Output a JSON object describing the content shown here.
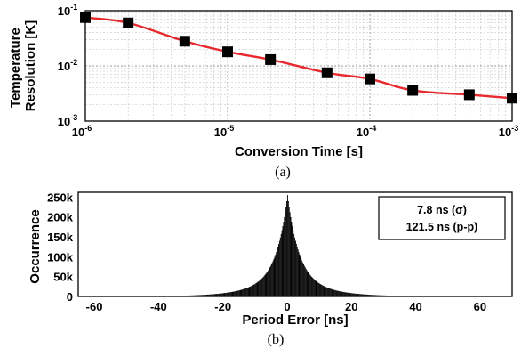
{
  "chart_data": [
    {
      "type": "line",
      "caption": "(a)",
      "xlabel": "Conversion Time [s]",
      "ylabel": "Temperature Resolution [K]",
      "xscale": "log",
      "yscale": "log",
      "xlim": [
        1e-06,
        0.001
      ],
      "ylim": [
        0.001,
        0.1
      ],
      "grid": true,
      "x_ticks": [
        {
          "base": "10",
          "exp": "-6"
        },
        {
          "base": "10",
          "exp": "-5"
        },
        {
          "base": "10",
          "exp": "-4"
        },
        {
          "base": "10",
          "exp": "-3"
        }
      ],
      "y_ticks": [
        {
          "base": "10",
          "exp": "-1"
        },
        {
          "base": "10",
          "exp": "-2"
        },
        {
          "base": "10",
          "exp": "-3"
        }
      ],
      "series": [
        {
          "color": "#e8282c",
          "marker": "square",
          "marker_color": "#000000",
          "x": [
            1e-06,
            2e-06,
            5e-06,
            1e-05,
            2e-05,
            5e-05,
            0.0001,
            0.0002,
            0.0005,
            0.001
          ],
          "y": [
            0.075,
            0.06,
            0.028,
            0.018,
            0.013,
            0.0075,
            0.0058,
            0.0036,
            0.003,
            0.0026
          ]
        }
      ]
    },
    {
      "type": "histogram",
      "caption": "(b)",
      "xlabel": "Period Error [ns]",
      "ylabel": "Occurrence",
      "xlim": [
        -65,
        70
      ],
      "ylim": [
        0,
        262000
      ],
      "x_ticks": [
        "-60",
        "-40",
        "-20",
        "0",
        "20",
        "40",
        "60"
      ],
      "y_ticks": [
        "0",
        "50k",
        "100k",
        "150k",
        "200k",
        "250k"
      ],
      "stats": {
        "sigma": "7.8 ns (σ)",
        "pp": "121.5 ns (p-p)"
      },
      "distribution": {
        "center": 0,
        "peak": 255000,
        "sigma_ns": 7.8,
        "range_ns": [
          -60.5,
          61
        ]
      },
      "bar_color": "#000000"
    }
  ]
}
